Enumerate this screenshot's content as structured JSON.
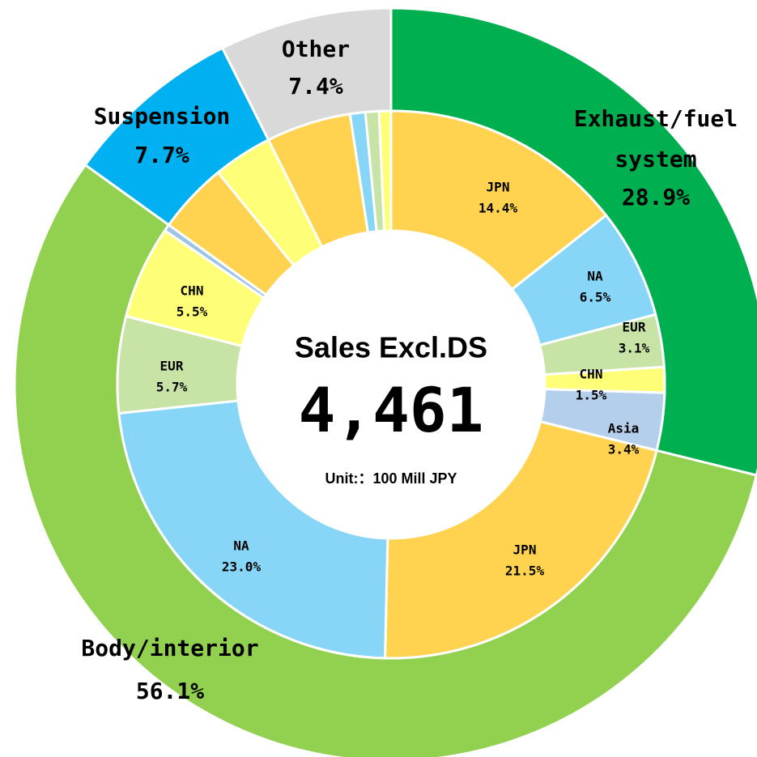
{
  "chart_data": {
    "type": "donut",
    "center": {
      "title": "Sales Excl.DS",
      "total": "4,461",
      "unit": "Unit:：100 Mill JPY"
    },
    "outer": {
      "categories": [
        "Exhaust/fuel system",
        "Body/interior",
        "Suspension",
        "Other"
      ],
      "values": [
        28.9,
        56.1,
        7.7,
        7.4
      ],
      "value_labels": [
        "28.9%",
        "56.1%",
        "7.7%",
        "7.4%"
      ],
      "colors": [
        "#00b050",
        "#92d050",
        "#00b0f0",
        "#d9d9d9"
      ]
    },
    "inner": {
      "categories": [
        "JPN",
        "NA",
        "EUR",
        "CHN",
        "Asia",
        "JPN",
        "NA",
        "EUR",
        "CHN",
        null,
        null,
        null,
        null,
        null,
        null,
        null
      ],
      "values": [
        14.4,
        6.5,
        3.1,
        1.5,
        3.4,
        21.5,
        23.0,
        5.7,
        5.5,
        0.4,
        4.2,
        3.5,
        5.0,
        0.9,
        0.8,
        0.7
      ],
      "value_labels": [
        "14.4%",
        "6.5%",
        "3.1%",
        "1.5%",
        "3.4%",
        "21.5%",
        "23.0%",
        "5.7%",
        "5.5%",
        null,
        null,
        null,
        null,
        null,
        null,
        null
      ],
      "colors": [
        "#ffd34f",
        "#87d5f7",
        "#c7e3a6",
        "#ffff77",
        "#b4cfeb",
        "#ffd34f",
        "#87d5f7",
        "#c7e3a6",
        "#ffff77",
        "#9dc3e6",
        "#ffd34f",
        "#ffff77",
        "#ffd34f",
        "#87d5f7",
        "#c7e3a6",
        "#ffff77"
      ]
    }
  }
}
